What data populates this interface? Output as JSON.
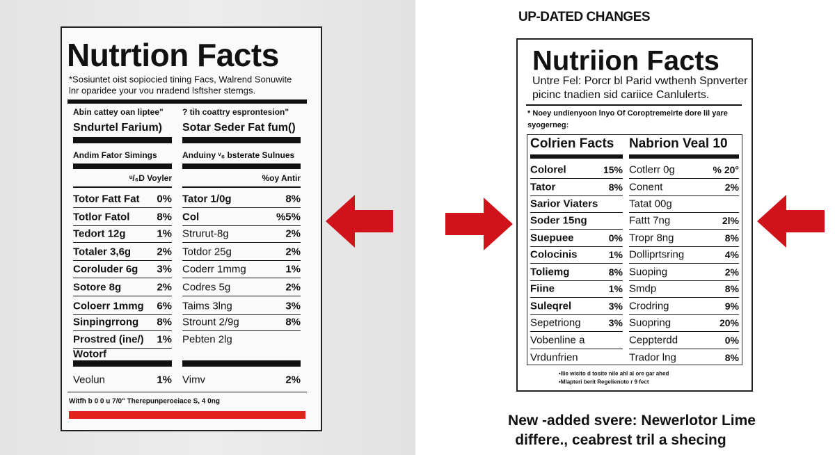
{
  "left_label": {
    "title": "Nutrtion Facts",
    "intro": [
      "*Sosiuntet oist sopiocied tining Facs, Walrend Sonuwite",
      "lnr oparidee your vou nradend lsftsher stemgs."
    ],
    "columns": [
      {
        "heading": "Abin cattey oan liptee\"",
        "subheading": "Sndurtel Farium)",
        "section": "Andim Fator Simings",
        "dv_header": "ᵘ/₆D Voyler",
        "rows": [
          {
            "label": "Totor Fatt Fat",
            "dv": "0%"
          },
          {
            "label": "Totlor Fatol",
            "dv": "8%"
          },
          {
            "label": "Tedort 12g",
            "dv": "1%"
          },
          {
            "label": "Totaler 3,6g",
            "dv": "2%"
          },
          {
            "label": "Coroluder 6g",
            "dv": "3%"
          },
          {
            "label": "Sotore 8g",
            "dv": "2%"
          },
          {
            "label": "Coloerr 1mmg",
            "dv": "6%"
          },
          {
            "label": "Sinpingrrong",
            "dv": "8%"
          },
          {
            "label": "Prostred (ine/)",
            "dv": "1%"
          },
          {
            "label": "Wotorf"
          }
        ],
        "total": {
          "label": "Veolun",
          "dv": "1%"
        }
      },
      {
        "heading": "? tih coattry esprontesion\"",
        "subheading": "Sotar Seder Fat fum()",
        "section": "Anduiny ᵛ₆ bsterate Sulnues",
        "dv_header": "%oy Antir",
        "rows": [
          {
            "label": "Tator 1/0g",
            "dv": "8%"
          },
          {
            "label": "Col",
            "dv": "%5%"
          },
          {
            "label": "Strurut-8g",
            "dv": "2%"
          },
          {
            "label": "Totdor 25g",
            "dv": "2%"
          },
          {
            "label": "Coderr 1mmg",
            "dv": "1%"
          },
          {
            "label": "Codres 5g",
            "dv": "2%"
          },
          {
            "label": "Taims 3lng",
            "dv": "3%"
          },
          {
            "label": "Strount 2/9g",
            "dv": "8%"
          },
          {
            "label": "Pebten 2lg"
          }
        ],
        "total": {
          "label": "Vimv",
          "dv": "2%"
        }
      }
    ],
    "footer": "Witfh b 0 0 u 7/0\" Therepunperoeiace S, 4 0ng"
  },
  "right_panel": {
    "heading": "UP-DATED CHANGES",
    "title": "Nutriion Facts",
    "intro": [
      "Untre Fel: Porcr bl Parid vwthenh Spnverter",
      "picinc tnadien sid cariice Canlulerts."
    ],
    "note": [
      "* Noey undienyoon lnyo Of Coroptremeirte dore lil yare",
      "syogerneg:"
    ],
    "columns": [
      {
        "header": "Colrien Facts",
        "rows": [
          {
            "label": "Colorel",
            "dv": "15%"
          },
          {
            "label": "Tator",
            "dv": "8%"
          },
          {
            "label": "Sarior Viaters"
          },
          {
            "label": "Soder 15ng"
          },
          {
            "label": "Suepuee",
            "dv": "0%"
          },
          {
            "label": "Colocinis",
            "dv": "1%"
          },
          {
            "label": "Toliemg",
            "dv": "8%"
          },
          {
            "label": "Fiine",
            "dv": "1%"
          },
          {
            "label": "Suleqrel",
            "dv": "3%"
          },
          {
            "label": "Sepetriong",
            "dv": "3%"
          },
          {
            "label": "Vobenline a"
          },
          {
            "label": "Vrdunfrien"
          }
        ]
      },
      {
        "header": "Nabrion Veal 10",
        "rows": [
          {
            "label": "Cotlerr 0g",
            "dv": "% 20°"
          },
          {
            "label": "Conent",
            "dv": "2%"
          },
          {
            "label": "Tatat 00g"
          },
          {
            "label": "Fattt 7ng",
            "dv": "2l%"
          },
          {
            "label": "Tropr 8ng",
            "dv": "8%"
          },
          {
            "label": "Dolliprtsring",
            "dv": "4%"
          },
          {
            "label": "Suoping",
            "dv": "2%"
          },
          {
            "label": "Smdp",
            "dv": "8%"
          },
          {
            "label": "Crodring",
            "dv": "9%"
          },
          {
            "label": "Suopring",
            "dv": "20%"
          },
          {
            "label": "Ceppterdd",
            "dv": "0%"
          },
          {
            "label": "Trador lng",
            "dv": "8%"
          }
        ]
      }
    ],
    "footnotes": [
      "•Ilie wisito d tosite nile ahl al ore gar ahed",
      "•Mlapteri berit Regelienoto r 9 fect"
    ],
    "caption": [
      "New -added svere: Newerlotor Lime",
      "differe., ceabrest tril a shecing"
    ]
  }
}
